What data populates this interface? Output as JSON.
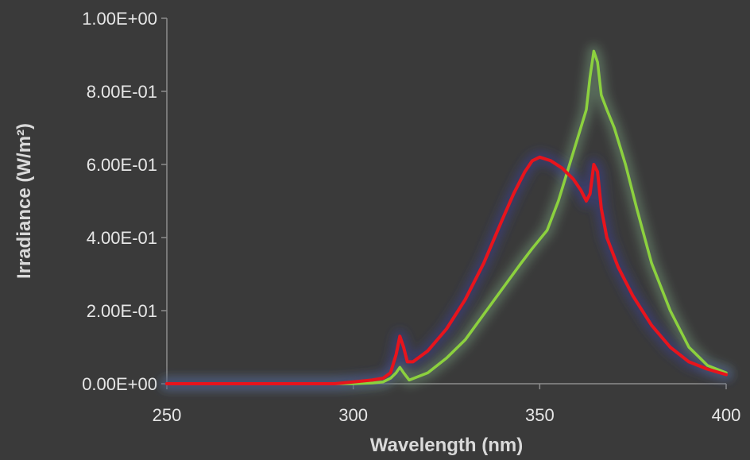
{
  "chart_data": {
    "type": "line",
    "xlabel": "Wavelength (nm)",
    "ylabel": "Irradiance (W/m²)",
    "xlim": [
      250,
      400
    ],
    "ylim": [
      0,
      1.0
    ],
    "x_ticks": [
      250,
      300,
      350,
      400
    ],
    "y_ticks": [
      0,
      0.2,
      0.4,
      0.6,
      0.8,
      1.0
    ],
    "x_tick_labels": [
      "250",
      "300",
      "350",
      "400"
    ],
    "y_tick_labels": [
      "0.00E+00",
      "2.00E-01",
      "4.00E-01",
      "6.00E-01",
      "8.00E-01",
      "1.00E+00"
    ],
    "grid": false,
    "legend": "none",
    "series": [
      {
        "color": "#e8141c",
        "glow": "#3b3f8f",
        "points": [
          [
            250,
            0.0
          ],
          [
            295,
            0.0
          ],
          [
            300,
            0.005
          ],
          [
            305,
            0.01
          ],
          [
            308,
            0.015
          ],
          [
            310,
            0.03
          ],
          [
            311.5,
            0.08
          ],
          [
            312.5,
            0.13
          ],
          [
            313.5,
            0.1
          ],
          [
            314.5,
            0.06
          ],
          [
            316,
            0.06
          ],
          [
            320,
            0.09
          ],
          [
            325,
            0.15
          ],
          [
            330,
            0.23
          ],
          [
            335,
            0.33
          ],
          [
            340,
            0.45
          ],
          [
            343,
            0.52
          ],
          [
            346,
            0.58
          ],
          [
            348,
            0.61
          ],
          [
            350,
            0.62
          ],
          [
            353,
            0.61
          ],
          [
            356,
            0.59
          ],
          [
            359,
            0.56
          ],
          [
            361,
            0.53
          ],
          [
            362.5,
            0.5
          ],
          [
            363.5,
            0.52
          ],
          [
            364.5,
            0.6
          ],
          [
            365.5,
            0.58
          ],
          [
            366.5,
            0.48
          ],
          [
            368,
            0.4
          ],
          [
            371,
            0.32
          ],
          [
            375,
            0.24
          ],
          [
            380,
            0.16
          ],
          [
            385,
            0.1
          ],
          [
            390,
            0.06
          ],
          [
            395,
            0.04
          ],
          [
            400,
            0.025
          ]
        ]
      },
      {
        "color": "#8cd13e",
        "glow": "#6f8f73",
        "points": [
          [
            250,
            0.0
          ],
          [
            300,
            0.0
          ],
          [
            305,
            0.002
          ],
          [
            308,
            0.005
          ],
          [
            310,
            0.015
          ],
          [
            311.5,
            0.03
          ],
          [
            312.5,
            0.045
          ],
          [
            313.5,
            0.03
          ],
          [
            315,
            0.01
          ],
          [
            320,
            0.03
          ],
          [
            325,
            0.07
          ],
          [
            330,
            0.12
          ],
          [
            335,
            0.19
          ],
          [
            340,
            0.26
          ],
          [
            345,
            0.33
          ],
          [
            348,
            0.37
          ],
          [
            352,
            0.42
          ],
          [
            355,
            0.5
          ],
          [
            358,
            0.6
          ],
          [
            361,
            0.7
          ],
          [
            362.5,
            0.75
          ],
          [
            363.5,
            0.84
          ],
          [
            364.5,
            0.91
          ],
          [
            365.5,
            0.88
          ],
          [
            366.5,
            0.79
          ],
          [
            368,
            0.75
          ],
          [
            370,
            0.7
          ],
          [
            373,
            0.6
          ],
          [
            376,
            0.48
          ],
          [
            380,
            0.33
          ],
          [
            385,
            0.2
          ],
          [
            390,
            0.1
          ],
          [
            395,
            0.05
          ],
          [
            400,
            0.03
          ]
        ]
      }
    ]
  }
}
